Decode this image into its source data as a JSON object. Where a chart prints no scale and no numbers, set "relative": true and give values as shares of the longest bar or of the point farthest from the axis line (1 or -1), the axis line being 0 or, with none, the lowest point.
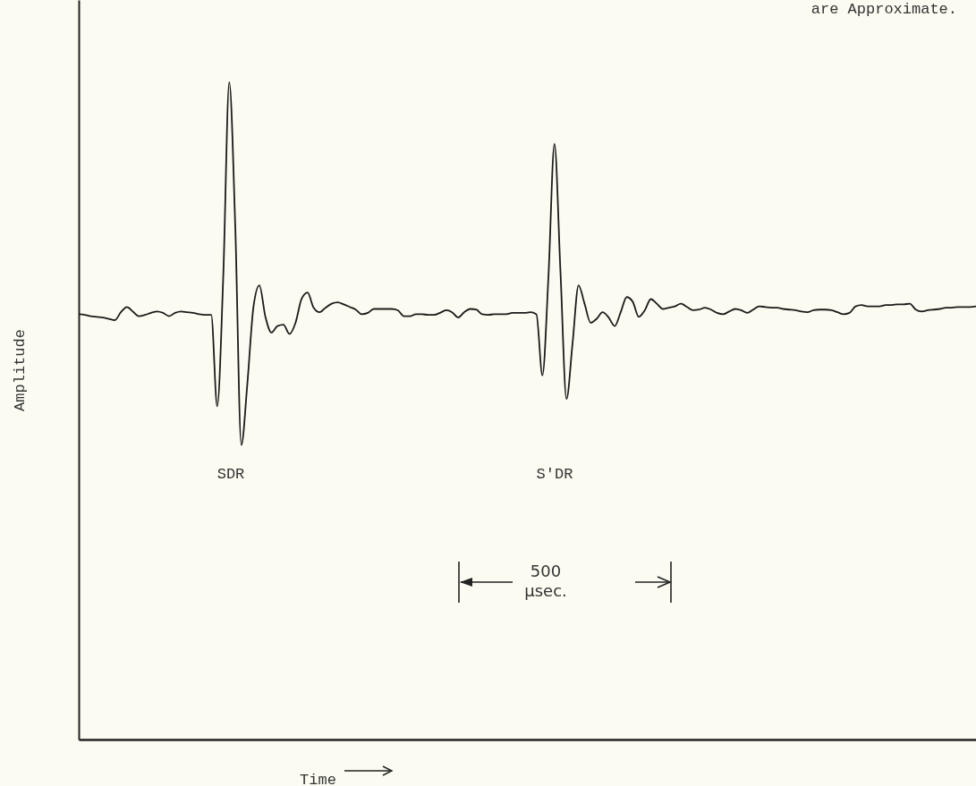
{
  "chart_data": {
    "type": "line",
    "relative": true,
    "xlabel": "Time",
    "ylabel": "Amplitude",
    "categories": [
      null,
      null,
      null,
      null,
      null,
      null,
      null,
      null,
      null,
      null,
      null,
      null,
      null,
      null,
      null,
      null,
      null,
      null,
      null,
      null,
      null,
      null,
      null,
      null,
      null,
      null,
      null,
      null,
      null,
      null,
      null,
      null,
      null,
      null,
      null,
      null,
      null,
      null,
      null,
      null,
      null,
      null,
      null,
      null,
      null,
      null,
      null,
      null,
      null,
      null,
      null,
      null,
      null,
      null,
      null,
      null,
      null,
      null,
      null,
      null,
      null,
      null,
      null,
      null,
      null,
      null,
      null,
      null,
      null,
      null,
      null,
      null,
      null,
      null,
      null,
      null,
      null,
      null,
      null,
      null,
      null,
      null,
      null,
      null,
      null,
      null,
      null,
      null,
      null,
      null,
      null,
      null,
      null,
      null,
      null,
      null,
      null,
      null,
      null,
      null,
      null,
      null,
      null,
      null,
      null,
      null,
      null,
      null,
      null,
      null,
      null,
      null,
      null,
      null,
      null,
      null,
      null,
      null,
      null,
      null,
      null,
      null,
      null,
      null,
      null,
      null,
      null,
      null,
      null,
      null,
      null,
      null,
      null,
      null,
      null,
      null,
      null,
      null,
      null,
      null,
      null,
      null,
      null,
      null,
      null,
      null,
      null,
      null,
      null,
      null
    ],
    "series": [
      {
        "color": "#1a1a1a",
        "values": [
          0.647,
          0.646,
          0.644,
          0.643,
          0.642,
          0.64,
          0.638,
          0.65,
          0.658,
          0.651,
          0.644,
          0.646,
          0.649,
          0.651,
          0.649,
          0.644,
          0.649,
          0.651,
          0.65,
          0.649,
          0.647,
          0.646,
          0.646,
          0.507,
          0.704,
          1,
          0.779,
          0.448,
          0.541,
          0.657,
          0.691,
          0.643,
          0.619,
          0.629,
          0.631,
          0.617,
          0.634,
          0.67,
          0.68,
          0.657,
          0.65,
          0.657,
          0.663,
          0.665,
          0.662,
          0.658,
          0.654,
          0.647,
          0.649,
          0.655,
          0.655,
          0.655,
          0.655,
          0.653,
          0.644,
          0.644,
          0.647,
          0.647,
          0.646,
          0.646,
          0.649,
          0.653,
          0.65,
          0.642,
          0.65,
          0.655,
          0.654,
          0.647,
          0.646,
          0.647,
          0.647,
          0.647,
          0.649,
          0.649,
          0.649,
          0.65,
          0.647,
          0.554,
          0.704,
          0.906,
          0.711,
          0.518,
          0.602,
          0.691,
          0.663,
          0.634,
          0.64,
          0.65,
          0.642,
          0.629,
          0.65,
          0.673,
          0.666,
          0.643,
          0.653,
          0.67,
          0.663,
          0.655,
          0.657,
          0.659,
          0.663,
          0.658,
          0.653,
          0.654,
          0.657,
          0.654,
          0.649,
          0.647,
          0.651,
          0.655,
          0.653,
          0.649,
          0.654,
          0.659,
          0.658,
          0.657,
          0.657,
          0.655,
          0.654,
          0.653,
          0.651,
          0.65,
          0.653,
          0.654,
          0.654,
          0.653,
          0.65,
          0.647,
          0.649,
          0.659,
          0.661,
          0.659,
          0.659,
          0.659,
          0.661,
          0.661,
          0.662,
          0.662,
          0.663,
          0.654,
          0.651,
          0.653,
          0.654,
          0.655,
          0.657,
          0.657,
          0.658,
          0.658,
          0.658,
          0.659
        ]
      }
    ],
    "annotations": [
      "are Approximate.",
      "SDR",
      "S'DR",
      "500 μsec."
    ]
  }
}
